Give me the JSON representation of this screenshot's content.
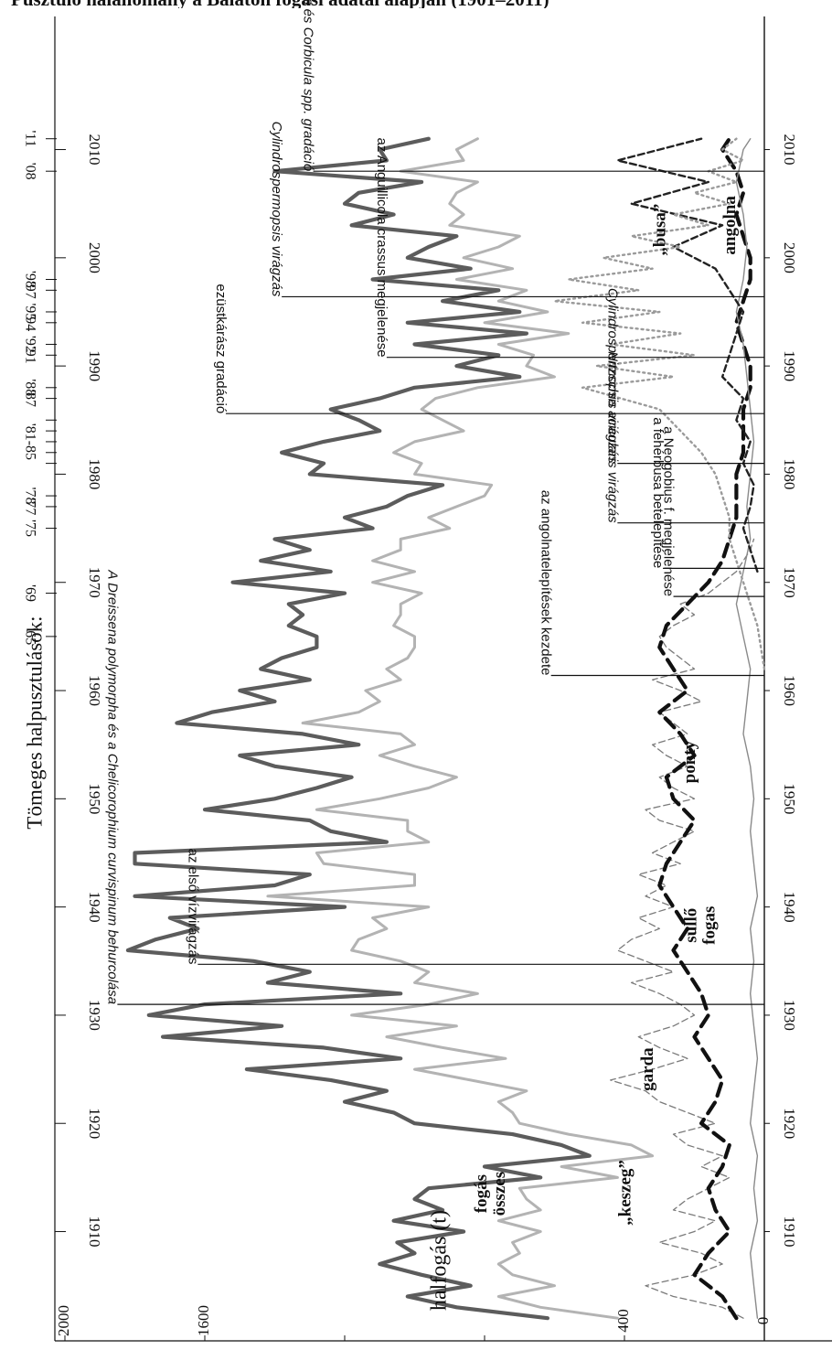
{
  "header": {
    "text": "Pusztuló halállomány a Balaton fogási adatai alapján (1901–2011)"
  },
  "chart_data": {
    "type": "line",
    "title": "",
    "xlabel": "",
    "ylabel": "halfogás (t)",
    "xlim": [
      1901,
      2012
    ],
    "ylim": [
      0,
      2200
    ],
    "x_ticks": [
      1910,
      1920,
      1930,
      1940,
      1950,
      1960,
      1970,
      1980,
      1990,
      2000,
      2010
    ],
    "y_ticks": [
      0,
      400,
      800,
      1200,
      1600,
      2000
    ],
    "y_tick_labels": [
      "0",
      "400",
      "",
      "",
      "1600",
      "2000"
    ],
    "events_title": "Tömeges halpusztulások:",
    "event_years": [
      1965,
      1969,
      1975,
      1977,
      1978,
      1981,
      1982,
      1983,
      1984,
      1985,
      1987,
      1988,
      1991,
      1992,
      1994,
      1995,
      1997,
      1998,
      2008,
      2011
    ],
    "event_labels": [
      {
        "year": 1965,
        "label": "'65"
      },
      {
        "year": 1969,
        "label": "'69"
      },
      {
        "year": 1975,
        "label": "'75"
      },
      {
        "year": 1977,
        "label": "'77"
      },
      {
        "year": 1978,
        "label": "'78"
      },
      {
        "year": 1983,
        "label": "'81-85"
      },
      {
        "year": 1987,
        "label": "'87"
      },
      {
        "year": 1988,
        "label": "'88"
      },
      {
        "year": 1991,
        "label": "'91"
      },
      {
        "year": 1992,
        "label": "'92"
      },
      {
        "year": 1994,
        "label": "'94"
      },
      {
        "year": 1995,
        "label": "'95"
      },
      {
        "year": 1997,
        "label": "'97"
      },
      {
        "year": 1998,
        "label": "'98"
      },
      {
        "year": 2008,
        "label": "'08"
      },
      {
        "year": 2011,
        "label": "'11"
      }
    ],
    "series": [
      {
        "name": "összes fogás",
        "color": "#5c5c5c",
        "style": "thick-solid",
        "x": [
          1902,
          1903,
          1904,
          1905,
          1906,
          1907,
          1908,
          1909,
          1910,
          1911,
          1912,
          1913,
          1914,
          1915,
          1916,
          1917,
          1918,
          1919,
          1920,
          1921,
          1922,
          1923,
          1924,
          1925,
          1926,
          1927,
          1928,
          1929,
          1930,
          1931,
          1932,
          1933,
          1934,
          1935,
          1936,
          1937,
          1938,
          1939,
          1940,
          1941,
          1942,
          1943,
          1944,
          1945,
          1946,
          1947,
          1948,
          1949,
          1950,
          1951,
          1952,
          1953,
          1954,
          1955,
          1956,
          1957,
          1958,
          1959,
          1960,
          1961,
          1962,
          1963,
          1964,
          1965,
          1966,
          1967,
          1968,
          1969,
          1970,
          1971,
          1972,
          1973,
          1974,
          1975,
          1976,
          1977,
          1978,
          1979,
          1980,
          1981,
          1982,
          1983,
          1984,
          1985,
          1986,
          1987,
          1988,
          1989,
          1990,
          1991,
          1992,
          1993,
          1994,
          1995,
          1996,
          1997,
          1998,
          1999,
          2000,
          2001,
          2002,
          2003,
          2004,
          2005,
          2006,
          2007,
          2008,
          2009,
          2010,
          2011
        ],
        "values": [
          620,
          880,
          1020,
          840,
          980,
          1100,
          1000,
          1050,
          860,
          1060,
          920,
          1000,
          960,
          640,
          800,
          500,
          580,
          720,
          1000,
          1060,
          1200,
          1080,
          1240,
          1480,
          1040,
          1260,
          1720,
          1380,
          1760,
          1600,
          1040,
          1420,
          1300,
          1460,
          1820,
          1740,
          1620,
          1700,
          1200,
          1800,
          1400,
          1300,
          1800,
          1800,
          1080,
          1240,
          1300,
          1600,
          1400,
          1280,
          1180,
          1400,
          1500,
          1160,
          1320,
          1680,
          1580,
          1400,
          1500,
          1300,
          1440,
          1380,
          1280,
          1280,
          1360,
          1320,
          1360,
          1200,
          1520,
          1240,
          1440,
          1300,
          1400,
          1120,
          1200,
          1080,
          1020,
          920,
          1300,
          1260,
          1380,
          1260,
          1100,
          1160,
          1240,
          1100,
          1000,
          700,
          880,
          760,
          1000,
          680,
          1020,
          700,
          920,
          760,
          1120,
          840,
          1020,
          960,
          880,
          1180,
          1060,
          1200,
          1160,
          980,
          1400,
          1080,
          1100,
          960
        ]
      },
      {
        "name": "„keszeg”",
        "color": "#b3b3b3",
        "style": "solid",
        "x": [
          1902,
          1903,
          1904,
          1905,
          1906,
          1907,
          1908,
          1909,
          1910,
          1911,
          1912,
          1913,
          1914,
          1915,
          1916,
          1917,
          1918,
          1919,
          1920,
          1921,
          1922,
          1923,
          1924,
          1925,
          1926,
          1927,
          1928,
          1929,
          1930,
          1931,
          1932,
          1933,
          1934,
          1935,
          1936,
          1937,
          1938,
          1939,
          1940,
          1941,
          1942,
          1943,
          1944,
          1945,
          1946,
          1947,
          1948,
          1949,
          1950,
          1951,
          1952,
          1953,
          1954,
          1955,
          1956,
          1957,
          1958,
          1959,
          1960,
          1961,
          1962,
          1963,
          1964,
          1965,
          1966,
          1967,
          1968,
          1969,
          1970,
          1971,
          1972,
          1973,
          1974,
          1975,
          1976,
          1977,
          1978,
          1979,
          1980,
          1981,
          1982,
          1983,
          1984,
          1985,
          1986,
          1987,
          1988,
          1989,
          1990,
          1991,
          1992,
          1993,
          1994,
          1995,
          1996,
          1997,
          1998,
          1999,
          2000,
          2001,
          2002,
          2003,
          2004,
          2005,
          2006,
          2007,
          2008,
          2009,
          2010,
          2011
        ],
        "values": [
          420,
          640,
          760,
          600,
          720,
          760,
          700,
          720,
          640,
          760,
          640,
          680,
          700,
          420,
          580,
          320,
          380,
          560,
          700,
          720,
          760,
          680,
          840,
          1000,
          740,
          920,
          1080,
          880,
          1180,
          960,
          820,
          1000,
          960,
          1040,
          1180,
          1160,
          1080,
          1120,
          960,
          1420,
          1000,
          1000,
          1260,
          1280,
          960,
          1020,
          1020,
          1280,
          1100,
          960,
          880,
          1000,
          1100,
          1000,
          1040,
          1320,
          1160,
          1100,
          1140,
          1040,
          1080,
          1020,
          1000,
          1000,
          1060,
          1040,
          1040,
          980,
          1120,
          1000,
          1120,
          1040,
          1040,
          900,
          960,
          880,
          800,
          780,
          1000,
          980,
          1060,
          1000,
          860,
          920,
          980,
          940,
          820,
          600,
          680,
          660,
          760,
          560,
          800,
          620,
          760,
          680,
          880,
          720,
          860,
          760,
          700,
          900,
          860,
          900,
          880,
          820,
          1040,
          860,
          880,
          820
        ]
      },
      {
        "name": "garda",
        "color": "#7a7a7a",
        "style": "thin-dashed",
        "x": [
          1902,
          1903,
          1904,
          1905,
          1906,
          1907,
          1908,
          1909,
          1910,
          1911,
          1912,
          1913,
          1914,
          1915,
          1916,
          1917,
          1918,
          1919,
          1920,
          1921,
          1922,
          1923,
          1924,
          1925,
          1926,
          1927,
          1928,
          1929,
          1930,
          1931,
          1932,
          1933,
          1934,
          1935,
          1936,
          1937,
          1938,
          1939,
          1940,
          1941,
          1942,
          1943,
          1944,
          1945,
          1946,
          1947,
          1948,
          1949,
          1950,
          1951,
          1952,
          1953,
          1954,
          1955,
          1956,
          1957,
          1958,
          1959,
          1960,
          1961,
          1962,
          1963,
          1964,
          1965,
          1966,
          1967,
          1968,
          1969,
          1970,
          1971,
          1972,
          1973,
          1974
        ],
        "values": [
          60,
          120,
          260,
          340,
          200,
          120,
          180,
          300,
          200,
          140,
          260,
          220,
          160,
          100,
          180,
          120,
          220,
          260,
          140,
          220,
          300,
          340,
          440,
          320,
          220,
          300,
          360,
          260,
          200,
          240,
          300,
          380,
          260,
          340,
          420,
          380,
          300,
          360,
          260,
          340,
          280,
          360,
          240,
          320,
          260,
          200,
          300,
          340,
          200,
          260,
          300,
          220,
          280,
          320,
          220,
          260,
          300,
          180,
          240,
          320,
          200,
          240,
          280,
          300,
          260,
          200,
          240,
          160,
          120,
          80,
          60,
          40,
          30
        ]
      },
      {
        "name": "fogas süllő",
        "color": "#111111",
        "style": "thick-dashed",
        "x": [
          1902,
          1904,
          1906,
          1908,
          1910,
          1912,
          1914,
          1916,
          1918,
          1920,
          1922,
          1924,
          1926,
          1928,
          1930,
          1932,
          1934,
          1936,
          1938,
          1940,
          1942,
          1944,
          1946,
          1948,
          1950,
          1952,
          1954,
          1956,
          1958,
          1960,
          1962,
          1964,
          1966,
          1968,
          1970,
          1972,
          1974,
          1976,
          1978,
          1980,
          1982,
          1984,
          1986,
          1988,
          1990,
          1992,
          1994,
          1996,
          1998,
          2000,
          2002,
          2004,
          2006,
          2008,
          2010,
          2011
        ],
        "values": [
          80,
          120,
          200,
          160,
          100,
          140,
          160,
          120,
          100,
          180,
          140,
          120,
          160,
          200,
          160,
          180,
          220,
          260,
          220,
          260,
          300,
          280,
          240,
          200,
          260,
          280,
          200,
          240,
          300,
          220,
          260,
          300,
          280,
          220,
          160,
          120,
          100,
          80,
          80,
          80,
          60,
          60,
          60,
          40,
          40,
          60,
          80,
          60,
          40,
          40,
          60,
          80,
          60,
          80,
          120,
          100
        ]
      },
      {
        "name": "ponty",
        "color": "#8a8a8a",
        "style": "thin-solid",
        "x": [
          1902,
          1905,
          1908,
          1911,
          1914,
          1917,
          1920,
          1923,
          1926,
          1929,
          1932,
          1935,
          1938,
          1941,
          1944,
          1947,
          1950,
          1953,
          1956,
          1959,
          1962,
          1965,
          1968,
          1971,
          1974,
          1977,
          1980,
          1983,
          1986,
          1989,
          1992,
          1995,
          1998,
          2001,
          2004,
          2007,
          2010,
          2011
        ],
        "values": [
          20,
          30,
          40,
          20,
          30,
          20,
          40,
          30,
          20,
          30,
          40,
          30,
          40,
          20,
          30,
          40,
          30,
          40,
          60,
          50,
          40,
          60,
          80,
          60,
          40,
          50,
          40,
          30,
          40,
          50,
          60,
          80,
          60,
          50,
          60,
          80,
          60,
          40
        ]
      },
      {
        "name": "„busa”",
        "color": "#222222",
        "style": "dashed",
        "x": [
          1971,
          1973,
          1975,
          1977,
          1979,
          1981,
          1983,
          1985,
          1987,
          1989,
          1991,
          1993,
          1995,
          1997,
          1999,
          2001,
          2003,
          2005,
          2007,
          2009,
          2011
        ],
        "values": [
          20,
          40,
          60,
          40,
          30,
          60,
          40,
          80,
          60,
          120,
          100,
          80,
          60,
          100,
          140,
          260,
          120,
          380,
          160,
          420,
          180
        ]
      },
      {
        "name": "angolna",
        "color": "#9a9a9a",
        "style": "dotted",
        "x": [
          1962,
          1964,
          1966,
          1968,
          1970,
          1972,
          1974,
          1976,
          1978,
          1980,
          1982,
          1984,
          1986,
          1988,
          1989,
          1990,
          1991,
          1992,
          1993,
          1994,
          1995,
          1996,
          1997,
          1998,
          1999,
          2000,
          2001,
          2002,
          2003,
          2004,
          2005,
          2006,
          2007,
          2008,
          2009,
          2010,
          2011
        ],
        "values": [
          0,
          10,
          20,
          40,
          60,
          80,
          100,
          100,
          120,
          140,
          180,
          240,
          300,
          520,
          260,
          480,
          200,
          440,
          240,
          520,
          300,
          600,
          360,
          560,
          320,
          460,
          240,
          380,
          160,
          260,
          100,
          200,
          80,
          160,
          60,
          120,
          80
        ]
      }
    ],
    "series_labels": [
      {
        "text": "összes fogás",
        "lines": [
          "összes",
          "fogás"
        ],
        "year": 1913.5,
        "value": 780
      },
      {
        "text": "„keszeg”",
        "year": 1913.6,
        "value": 395
      },
      {
        "text": "garda",
        "year": 1925.0,
        "value": 330
      },
      {
        "text": "fogas süllő",
        "lines": [
          "fogas",
          "süllő"
        ],
        "year": 1938.3,
        "value": 180
      },
      {
        "text": "ponty",
        "year": 1953.4,
        "value": 210
      },
      {
        "text": "„busa”",
        "year": 2002.6,
        "value": 295
      },
      {
        "text": "angolna",
        "year": 2003.0,
        "value": 95
      }
    ],
    "annotations": [
      {
        "year": 2008.0,
        "text": "Dreisenna bugensis és Corbicula spp. gradáció",
        "italic": true,
        "end_value": 1290
      },
      {
        "year": 1996.4,
        "text": "Cylindrospermopsis virágzás",
        "italic": true,
        "end_value": 1380
      },
      {
        "year": 1990.8,
        "text": "az Anguillicola crassus megjelenése",
        "italic": false,
        "end_value": 1080
      },
      {
        "year": 1985.6,
        "text": "ezüstkárász gradáció",
        "italic": false,
        "end_value": 1540
      },
      {
        "year": 1981.0,
        "text": "Cylindrospermopsis virágzás",
        "italic": true,
        "end_value": 420
      },
      {
        "year": 1975.5,
        "text": "Nitzschia acicularis virágzás",
        "italic": true,
        "end_value": 420
      },
      {
        "year": 1971.3,
        "text": "a fehérbusa betelepítése",
        "italic": false,
        "end_value": 290
      },
      {
        "year": 1968.7,
        "text": "a Neogobius f. megjelenése",
        "italic": false,
        "end_value": 260
      },
      {
        "year": 1961.4,
        "text": "az angolnatelepítések kezdete",
        "italic": false,
        "end_value": 610
      },
      {
        "year": 1931.0,
        "text": "A Dreissena polymorpha és a Chelicorophium curvispinum behurcolása",
        "italic": true,
        "end_value": 1850
      },
      {
        "year": 1934.7,
        "text": "az első vízvirágzás",
        "italic": false,
        "end_value": 1620
      }
    ]
  }
}
